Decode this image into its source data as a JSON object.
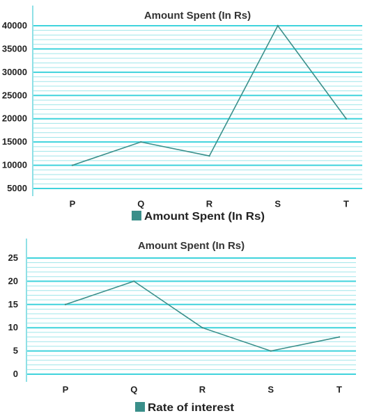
{
  "colors": {
    "grid_major": "#3fd3dc",
    "grid_minor": "#9fe6ea",
    "axis": "#8fe0e6",
    "line": "#3a8f8a",
    "legend_swatch": "#3a8f8a"
  },
  "chart_data": [
    {
      "type": "line",
      "title": "Amount Spent (In Rs)",
      "categories": [
        "P",
        "Q",
        "R",
        "S",
        "T"
      ],
      "series": [
        {
          "name": "Amount Spent (In Rs)",
          "values": [
            10000,
            15000,
            12000,
            40000,
            20000
          ]
        }
      ],
      "yticks": [
        "5000",
        "10000",
        "15000",
        "20000",
        "25000",
        "30000",
        "35000",
        "40000"
      ],
      "ylim": [
        5000,
        40000
      ],
      "grid": true,
      "legend": "bottom"
    },
    {
      "type": "line",
      "title": "Amount Spent (In Rs)",
      "categories": [
        "P",
        "Q",
        "R",
        "S",
        "T"
      ],
      "series": [
        {
          "name": "Rate of interest",
          "values": [
            15,
            20,
            10,
            5,
            8
          ]
        }
      ],
      "yticks": [
        "0",
        "5",
        "10",
        "15",
        "20",
        "25"
      ],
      "ylim": [
        0,
        25
      ],
      "grid": true,
      "legend": "bottom"
    }
  ]
}
